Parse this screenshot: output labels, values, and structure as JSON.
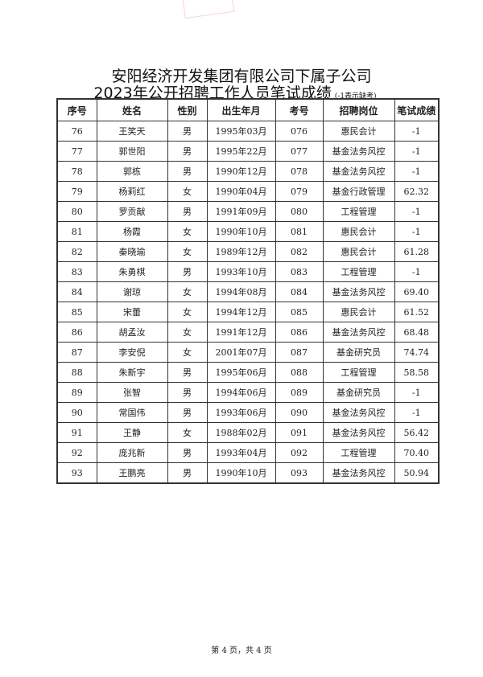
{
  "title_line1": "安阳经济开发集团有限公司下属子公司",
  "title_line2": "2023年公开招聘工作人员笔试成绩",
  "note": "(-1表示缺考)",
  "headers": [
    "序号",
    "姓名",
    "性别",
    "出生年月",
    "考号",
    "招聘岗位",
    "笔试成绩"
  ],
  "rows": [
    [
      "76",
      "王笑天",
      "男",
      "1995年03月",
      "076",
      "惠民会计",
      "-1"
    ],
    [
      "77",
      "郭世阳",
      "男",
      "1995年22月",
      "077",
      "基金法务风控",
      "-1"
    ],
    [
      "78",
      "郭栋",
      "男",
      "1990年12月",
      "078",
      "基金法务风控",
      "-1"
    ],
    [
      "79",
      "杨莉红",
      "女",
      "1990年04月",
      "079",
      "基金行政管理",
      "62.32"
    ],
    [
      "80",
      "罗贡献",
      "男",
      "1991年09月",
      "080",
      "工程管理",
      "-1"
    ],
    [
      "81",
      "杨霞",
      "女",
      "1990年10月",
      "081",
      "惠民会计",
      "-1"
    ],
    [
      "82",
      "秦晓瑜",
      "女",
      "1989年12月",
      "082",
      "惠民会计",
      "61.28"
    ],
    [
      "83",
      "朱勇棋",
      "男",
      "1993年10月",
      "083",
      "工程管理",
      "-1"
    ],
    [
      "84",
      "谢琼",
      "女",
      "1994年08月",
      "084",
      "基金法务风控",
      "69.40"
    ],
    [
      "85",
      "宋蕾",
      "女",
      "1994年12月",
      "085",
      "惠民会计",
      "61.52"
    ],
    [
      "86",
      "胡孟汝",
      "女",
      "1991年12月",
      "086",
      "基金法务风控",
      "68.48"
    ],
    [
      "87",
      "李安倪",
      "女",
      "2001年07月",
      "087",
      "基金研究员",
      "74.74"
    ],
    [
      "88",
      "朱新宇",
      "男",
      "1995年06月",
      "088",
      "工程管理",
      "58.58"
    ],
    [
      "89",
      "张智",
      "男",
      "1994年06月",
      "089",
      "基金研究员",
      "-1"
    ],
    [
      "90",
      "常国伟",
      "男",
      "1993年06月",
      "090",
      "基金法务风控",
      "-1"
    ],
    [
      "91",
      "王静",
      "女",
      "1988年02月",
      "091",
      "基金法务风控",
      "56.42"
    ],
    [
      "92",
      "庞兆新",
      "男",
      "1993年04月",
      "092",
      "工程管理",
      "70.40"
    ],
    [
      "93",
      "王鹏亮",
      "男",
      "1990年10月",
      "093",
      "基金法务风控",
      "50.94"
    ]
  ],
  "footer": "第 4 页，共 4 页"
}
